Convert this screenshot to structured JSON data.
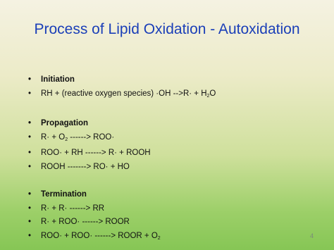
{
  "title": "Process of Lipid Oxidation - Autoxidation",
  "sections": [
    {
      "heading": "Initiation",
      "items": [
        [
          {
            "text": "RH + (reactive oxygen species) ·OH -->R· + H"
          },
          {
            "text": "2",
            "sub": true
          },
          {
            "text": "O"
          }
        ]
      ]
    },
    {
      "heading": "Propagation",
      "items": [
        [
          {
            "text": "R· + O"
          },
          {
            "text": "2",
            "sub": true
          },
          {
            "text": " ------> ROO·"
          }
        ],
        [
          {
            "text": "ROO· + RH ------> R· + ROOH"
          }
        ],
        [
          {
            "text": "ROOH -------> RO· + HO"
          }
        ]
      ]
    },
    {
      "heading": "Termination",
      "items": [
        [
          {
            "text": "R· + R· ------> RR"
          }
        ],
        [
          {
            "text": "R· + ROO· ------> ROOR"
          }
        ],
        [
          {
            "text": "ROO· + ROO· ------> ROOR + O"
          },
          {
            "text": "2",
            "sub": true
          }
        ]
      ]
    }
  ],
  "page_number": "4"
}
